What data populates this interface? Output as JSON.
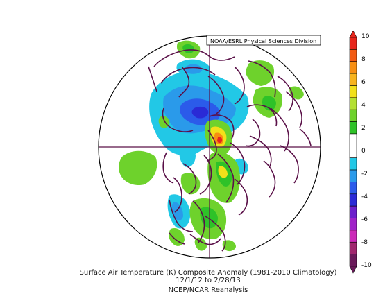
{
  "credit": "NOAA/ESRL Physical Sciences Division",
  "caption": {
    "line1": "Surface Air Temperature (K) Composite Anomaly (1981-2010 Climatology)",
    "line2": "12/1/12  to 2/28/13",
    "line3": "NCEP/NCAR Reanalysis"
  },
  "colorbar": {
    "labels": [
      "10",
      "8",
      "6",
      "4",
      "2",
      "0",
      "-2",
      "-4",
      "-6",
      "-8",
      "-10"
    ],
    "colors_top_to_bottom": [
      "#e8261c",
      "#f25a12",
      "#f78e12",
      "#f7b31c",
      "#f2e01a",
      "#b4e032",
      "#6ed22c",
      "#2ec228",
      "#ffffff",
      "#ffffff",
      "#22c8e6",
      "#2a9aea",
      "#2b5bea",
      "#2a2ad6",
      "#6c1fcc",
      "#a022c8",
      "#cc2ab8",
      "#a0266e",
      "#6a1a5a"
    ]
  },
  "colors": {
    "coast": "#5a1048",
    "cold_light": "#22c8e6",
    "cold_mid": "#2a9aea",
    "cold_deep": "#2b5bea",
    "warm_light": "#6ed22c",
    "warm_mid": "#2ec228",
    "warm_yellow": "#f2e01a",
    "warm_orange": "#f78e12",
    "warm_red": "#e8261c"
  }
}
